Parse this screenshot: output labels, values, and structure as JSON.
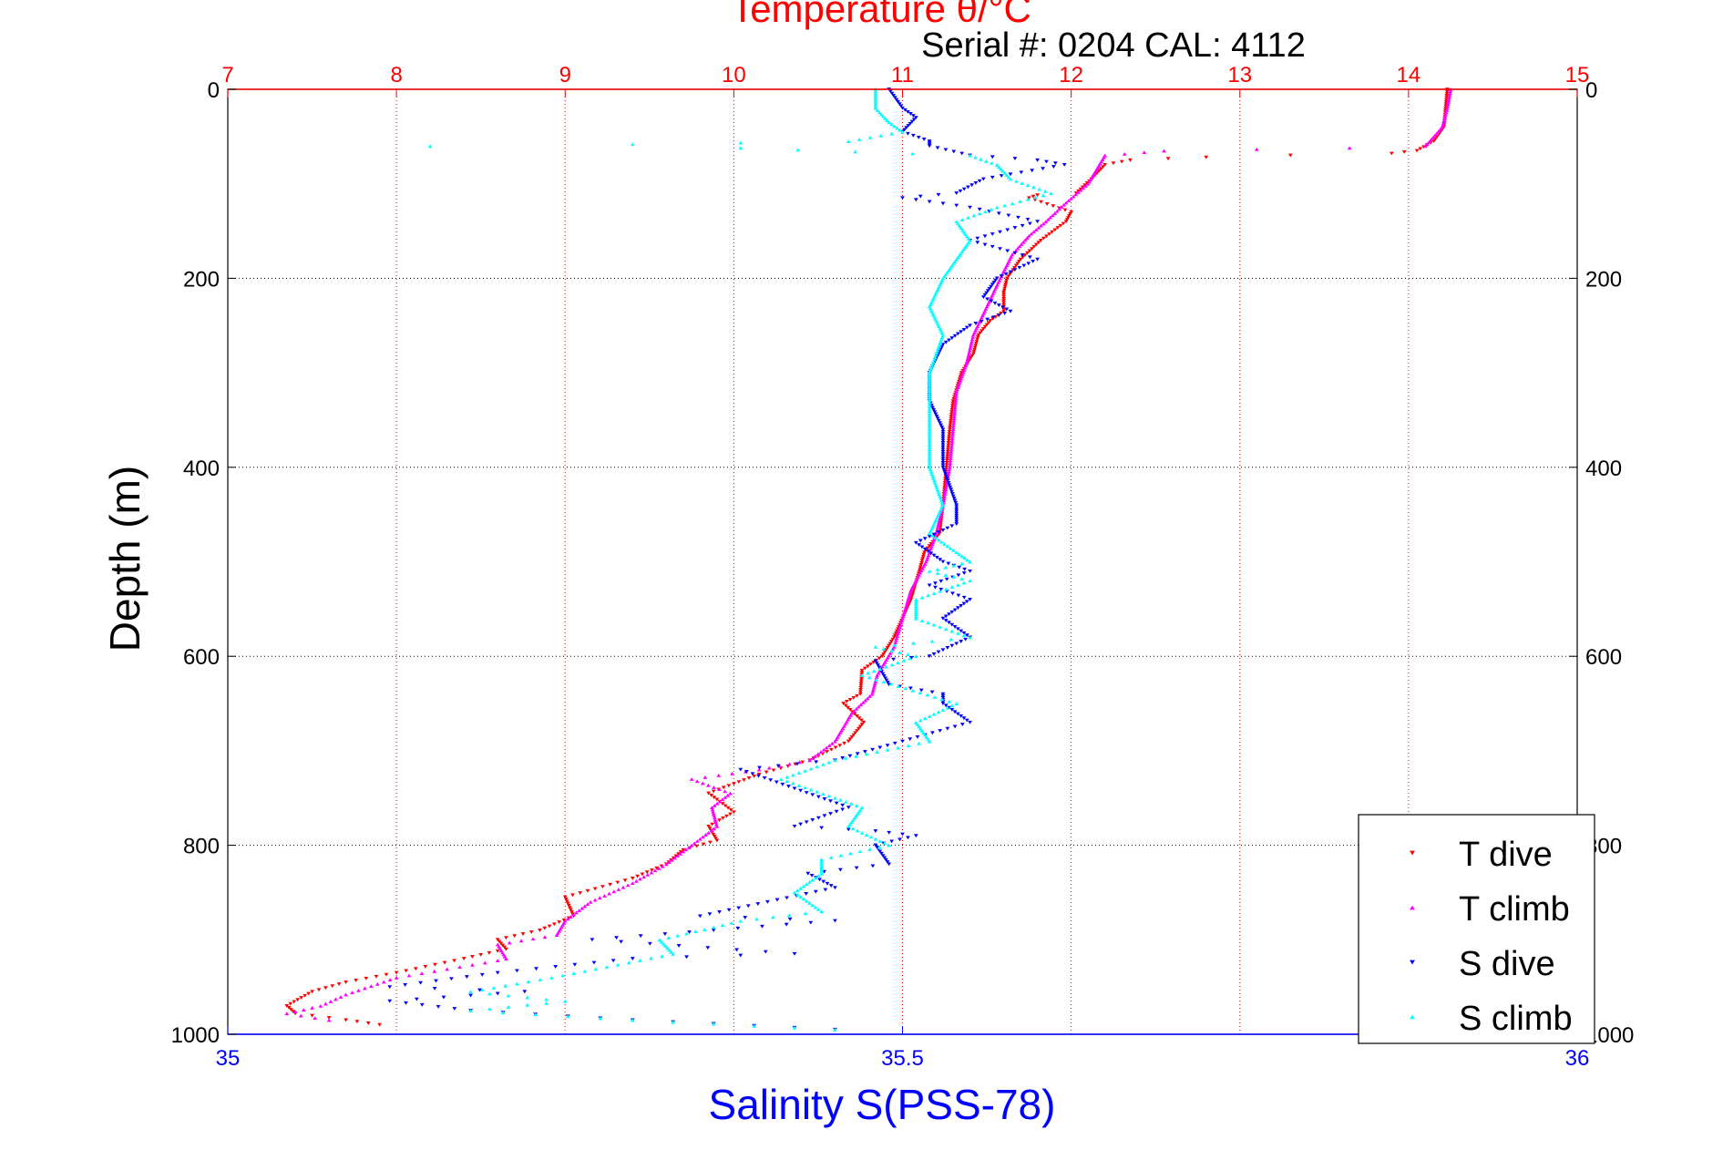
{
  "chart_data": {
    "type": "scatter",
    "title": "Temperature θ/°C",
    "subtitle": "Serial #: 0204  CAL: 4112",
    "ylabel": "Depth (m)",
    "xlabel": "Salinity S(PSS-78)",
    "y_axis": {
      "label": "Depth (m)",
      "range": [
        0,
        1000
      ],
      "reversed": true,
      "ticks": [
        0,
        200,
        400,
        600,
        800,
        1000
      ]
    },
    "x_axis_top": {
      "label": "Temperature θ/°C",
      "range": [
        7,
        15
      ],
      "ticks": [
        7,
        8,
        9,
        10,
        11,
        12,
        13,
        14,
        15
      ],
      "color": "#ff0000"
    },
    "x_axis_bottom": {
      "label": "Salinity S(PSS-78)",
      "range": [
        35,
        36
      ],
      "ticks": [
        35,
        35.5,
        36
      ],
      "tick_labels": [
        "35",
        "35.5",
        "36"
      ],
      "color": "#0000ff"
    },
    "grid": true,
    "legend_position": "bottom-right",
    "series": [
      {
        "name": "T dive",
        "axis": "temperature",
        "color": "#ff0000",
        "marker": "triangle-down",
        "points": [
          [
            14.23,
            0
          ],
          [
            14.22,
            20
          ],
          [
            14.21,
            40
          ],
          [
            14.15,
            55
          ],
          [
            14.05,
            65
          ],
          [
            13.9,
            68
          ],
          [
            13.3,
            70
          ],
          [
            12.8,
            72
          ],
          [
            12.35,
            75
          ],
          [
            12.2,
            80
          ],
          [
            12.12,
            95
          ],
          [
            12.03,
            110
          ],
          [
            11.8,
            112
          ],
          [
            11.75,
            115
          ],
          [
            12.0,
            130
          ],
          [
            11.97,
            140
          ],
          [
            11.82,
            160
          ],
          [
            11.7,
            180
          ],
          [
            11.62,
            200
          ],
          [
            11.6,
            215
          ],
          [
            11.6,
            235
          ],
          [
            11.52,
            245
          ],
          [
            11.45,
            260
          ],
          [
            11.42,
            280
          ],
          [
            11.35,
            300
          ],
          [
            11.3,
            330
          ],
          [
            11.28,
            360
          ],
          [
            11.26,
            400
          ],
          [
            11.24,
            440
          ],
          [
            11.22,
            470
          ],
          [
            11.13,
            490
          ],
          [
            11.1,
            510
          ],
          [
            11.05,
            540
          ],
          [
            11.0,
            560
          ],
          [
            10.95,
            580
          ],
          [
            10.88,
            600
          ],
          [
            10.76,
            615
          ],
          [
            10.75,
            640
          ],
          [
            10.65,
            650
          ],
          [
            10.77,
            670
          ],
          [
            10.68,
            690
          ],
          [
            10.45,
            710
          ],
          [
            10.15,
            725
          ],
          [
            10.0,
            735
          ],
          [
            9.85,
            745
          ],
          [
            10.0,
            765
          ],
          [
            9.85,
            780
          ],
          [
            9.9,
            795
          ],
          [
            9.7,
            805
          ],
          [
            9.6,
            820
          ],
          [
            9.4,
            835
          ],
          [
            9.0,
            855
          ],
          [
            9.05,
            875
          ],
          [
            8.85,
            890
          ],
          [
            8.6,
            900
          ],
          [
            8.65,
            910
          ],
          [
            8.4,
            920
          ],
          [
            8.0,
            935
          ],
          [
            7.7,
            945
          ],
          [
            7.5,
            955
          ],
          [
            7.35,
            970
          ],
          [
            7.4,
            978
          ],
          [
            7.7,
            985
          ],
          [
            7.9,
            990
          ]
        ]
      },
      {
        "name": "T climb",
        "axis": "temperature",
        "color": "#ff00ff",
        "marker": "triangle-up",
        "points": [
          [
            14.25,
            0
          ],
          [
            14.23,
            20
          ],
          [
            14.2,
            40
          ],
          [
            14.1,
            60
          ],
          [
            13.65,
            62
          ],
          [
            12.55,
            65
          ],
          [
            12.2,
            70
          ],
          [
            12.15,
            85
          ],
          [
            12.1,
            100
          ],
          [
            11.97,
            120
          ],
          [
            11.85,
            140
          ],
          [
            11.75,
            155
          ],
          [
            11.65,
            175
          ],
          [
            11.58,
            200
          ],
          [
            11.5,
            230
          ],
          [
            11.42,
            260
          ],
          [
            11.38,
            290
          ],
          [
            11.32,
            320
          ],
          [
            11.3,
            360
          ],
          [
            11.28,
            400
          ],
          [
            11.24,
            440
          ],
          [
            11.2,
            470
          ],
          [
            11.14,
            500
          ],
          [
            11.05,
            530
          ],
          [
            11.0,
            560
          ],
          [
            10.95,
            590
          ],
          [
            10.85,
            620
          ],
          [
            10.82,
            640
          ],
          [
            10.7,
            660
          ],
          [
            10.6,
            690
          ],
          [
            10.45,
            710
          ],
          [
            10.15,
            720
          ],
          [
            9.75,
            730
          ],
          [
            9.98,
            745
          ],
          [
            9.87,
            760
          ],
          [
            9.9,
            780
          ],
          [
            9.75,
            800
          ],
          [
            9.6,
            820
          ],
          [
            9.4,
            840
          ],
          [
            9.15,
            860
          ],
          [
            9.0,
            880
          ],
          [
            8.95,
            895
          ],
          [
            8.6,
            905
          ],
          [
            8.65,
            920
          ],
          [
            8.6,
            922
          ],
          [
            8.0,
            940
          ],
          [
            7.7,
            958
          ],
          [
            7.55,
            970
          ],
          [
            7.35,
            978
          ],
          [
            7.6,
            985
          ]
        ]
      },
      {
        "name": "S dive",
        "axis": "salinity",
        "color": "#0000ff",
        "marker": "triangle-down",
        "points": [
          [
            35.49,
            0
          ],
          [
            35.5,
            20
          ],
          [
            35.51,
            30
          ],
          [
            35.5,
            45
          ],
          [
            35.52,
            55
          ],
          [
            35.52,
            60
          ],
          [
            35.55,
            70
          ],
          [
            35.6,
            75
          ],
          [
            35.62,
            80
          ],
          [
            35.58,
            90
          ],
          [
            35.56,
            95
          ],
          [
            35.54,
            110
          ],
          [
            35.5,
            115
          ],
          [
            35.55,
            125
          ],
          [
            35.6,
            140
          ],
          [
            35.55,
            160
          ],
          [
            35.6,
            180
          ],
          [
            35.57,
            200
          ],
          [
            35.56,
            220
          ],
          [
            35.58,
            235
          ],
          [
            35.55,
            250
          ],
          [
            35.53,
            270
          ],
          [
            35.52,
            300
          ],
          [
            35.52,
            330
          ],
          [
            35.53,
            360
          ],
          [
            35.53,
            400
          ],
          [
            35.54,
            440
          ],
          [
            35.54,
            460
          ],
          [
            35.51,
            480
          ],
          [
            35.53,
            500
          ],
          [
            35.55,
            510
          ],
          [
            35.52,
            525
          ],
          [
            35.55,
            540
          ],
          [
            35.53,
            560
          ],
          [
            35.55,
            580
          ],
          [
            35.52,
            600
          ],
          [
            35.48,
            605
          ],
          [
            35.49,
            630
          ],
          [
            35.53,
            640
          ],
          [
            35.53,
            650
          ],
          [
            35.55,
            670
          ],
          [
            35.5,
            690
          ],
          [
            35.45,
            710
          ],
          [
            35.38,
            720
          ],
          [
            35.42,
            740
          ],
          [
            35.46,
            760
          ],
          [
            35.42,
            780
          ],
          [
            35.48,
            785
          ],
          [
            35.51,
            790
          ],
          [
            35.48,
            800
          ],
          [
            35.49,
            820
          ],
          [
            35.43,
            830
          ],
          [
            35.45,
            845
          ],
          [
            35.4,
            860
          ],
          [
            35.35,
            875
          ],
          [
            35.45,
            880
          ],
          [
            35.36,
            890
          ],
          [
            35.27,
            900
          ],
          [
            35.42,
            915
          ],
          [
            35.3,
            920
          ],
          [
            35.2,
            935
          ],
          [
            35.12,
            950
          ],
          [
            35.22,
            955
          ],
          [
            35.12,
            965
          ],
          [
            35.18,
            975
          ],
          [
            35.3,
            985
          ],
          [
            35.45,
            995
          ]
        ]
      },
      {
        "name": "S climb",
        "axis": "salinity",
        "color": "#00ffff",
        "marker": "triangle-up",
        "points": [
          [
            35.48,
            0
          ],
          [
            35.48,
            20
          ],
          [
            35.49,
            35
          ],
          [
            35.5,
            45
          ],
          [
            35.46,
            55
          ],
          [
            35.3,
            58
          ],
          [
            35.15,
            60
          ],
          [
            35.38,
            62
          ],
          [
            35.55,
            70
          ],
          [
            35.57,
            80
          ],
          [
            35.58,
            95
          ],
          [
            35.61,
            110
          ],
          [
            35.57,
            125
          ],
          [
            35.54,
            140
          ],
          [
            35.55,
            160
          ],
          [
            35.54,
            180
          ],
          [
            35.53,
            200
          ],
          [
            35.52,
            230
          ],
          [
            35.53,
            260
          ],
          [
            35.52,
            300
          ],
          [
            35.52,
            350
          ],
          [
            35.52,
            400
          ],
          [
            35.53,
            440
          ],
          [
            35.52,
            470
          ],
          [
            35.54,
            490
          ],
          [
            35.55,
            500
          ],
          [
            35.52,
            510
          ],
          [
            35.55,
            520
          ],
          [
            35.51,
            540
          ],
          [
            35.51,
            560
          ],
          [
            35.55,
            580
          ],
          [
            35.48,
            590
          ],
          [
            35.51,
            600
          ],
          [
            35.47,
            620
          ],
          [
            35.54,
            650
          ],
          [
            35.51,
            670
          ],
          [
            35.52,
            690
          ],
          [
            35.45,
            710
          ],
          [
            35.41,
            730
          ],
          [
            35.45,
            750
          ],
          [
            35.47,
            760
          ],
          [
            35.46,
            780
          ],
          [
            35.49,
            800
          ],
          [
            35.44,
            815
          ],
          [
            35.44,
            830
          ],
          [
            35.42,
            850
          ],
          [
            35.44,
            870
          ],
          [
            35.38,
            880
          ],
          [
            35.32,
            900
          ],
          [
            35.33,
            915
          ],
          [
            35.24,
            940
          ],
          [
            35.18,
            955
          ],
          [
            35.25,
            965
          ],
          [
            35.18,
            975
          ],
          [
            35.3,
            985
          ],
          [
            35.45,
            995
          ]
        ]
      }
    ]
  }
}
